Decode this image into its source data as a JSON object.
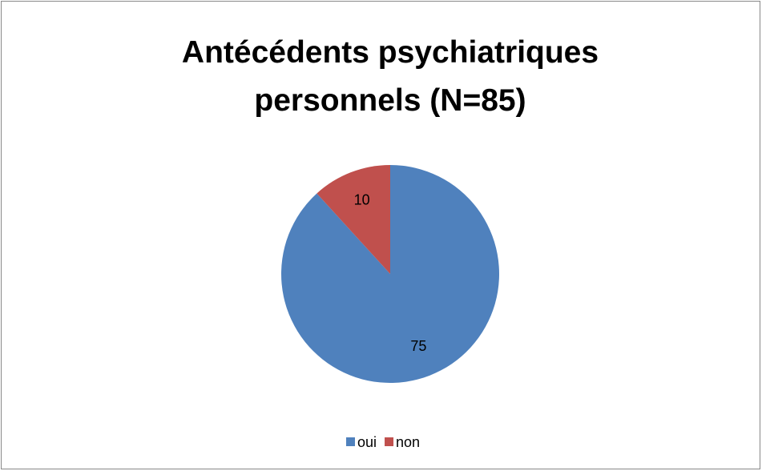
{
  "chart_data": {
    "type": "pie",
    "title": "Antécédents psychiatriques personnels (N=85)",
    "categories": [
      "oui",
      "non"
    ],
    "values": [
      75,
      10
    ],
    "colors": [
      "#4f81bd",
      "#c0504d"
    ],
    "legend": "bottom"
  }
}
